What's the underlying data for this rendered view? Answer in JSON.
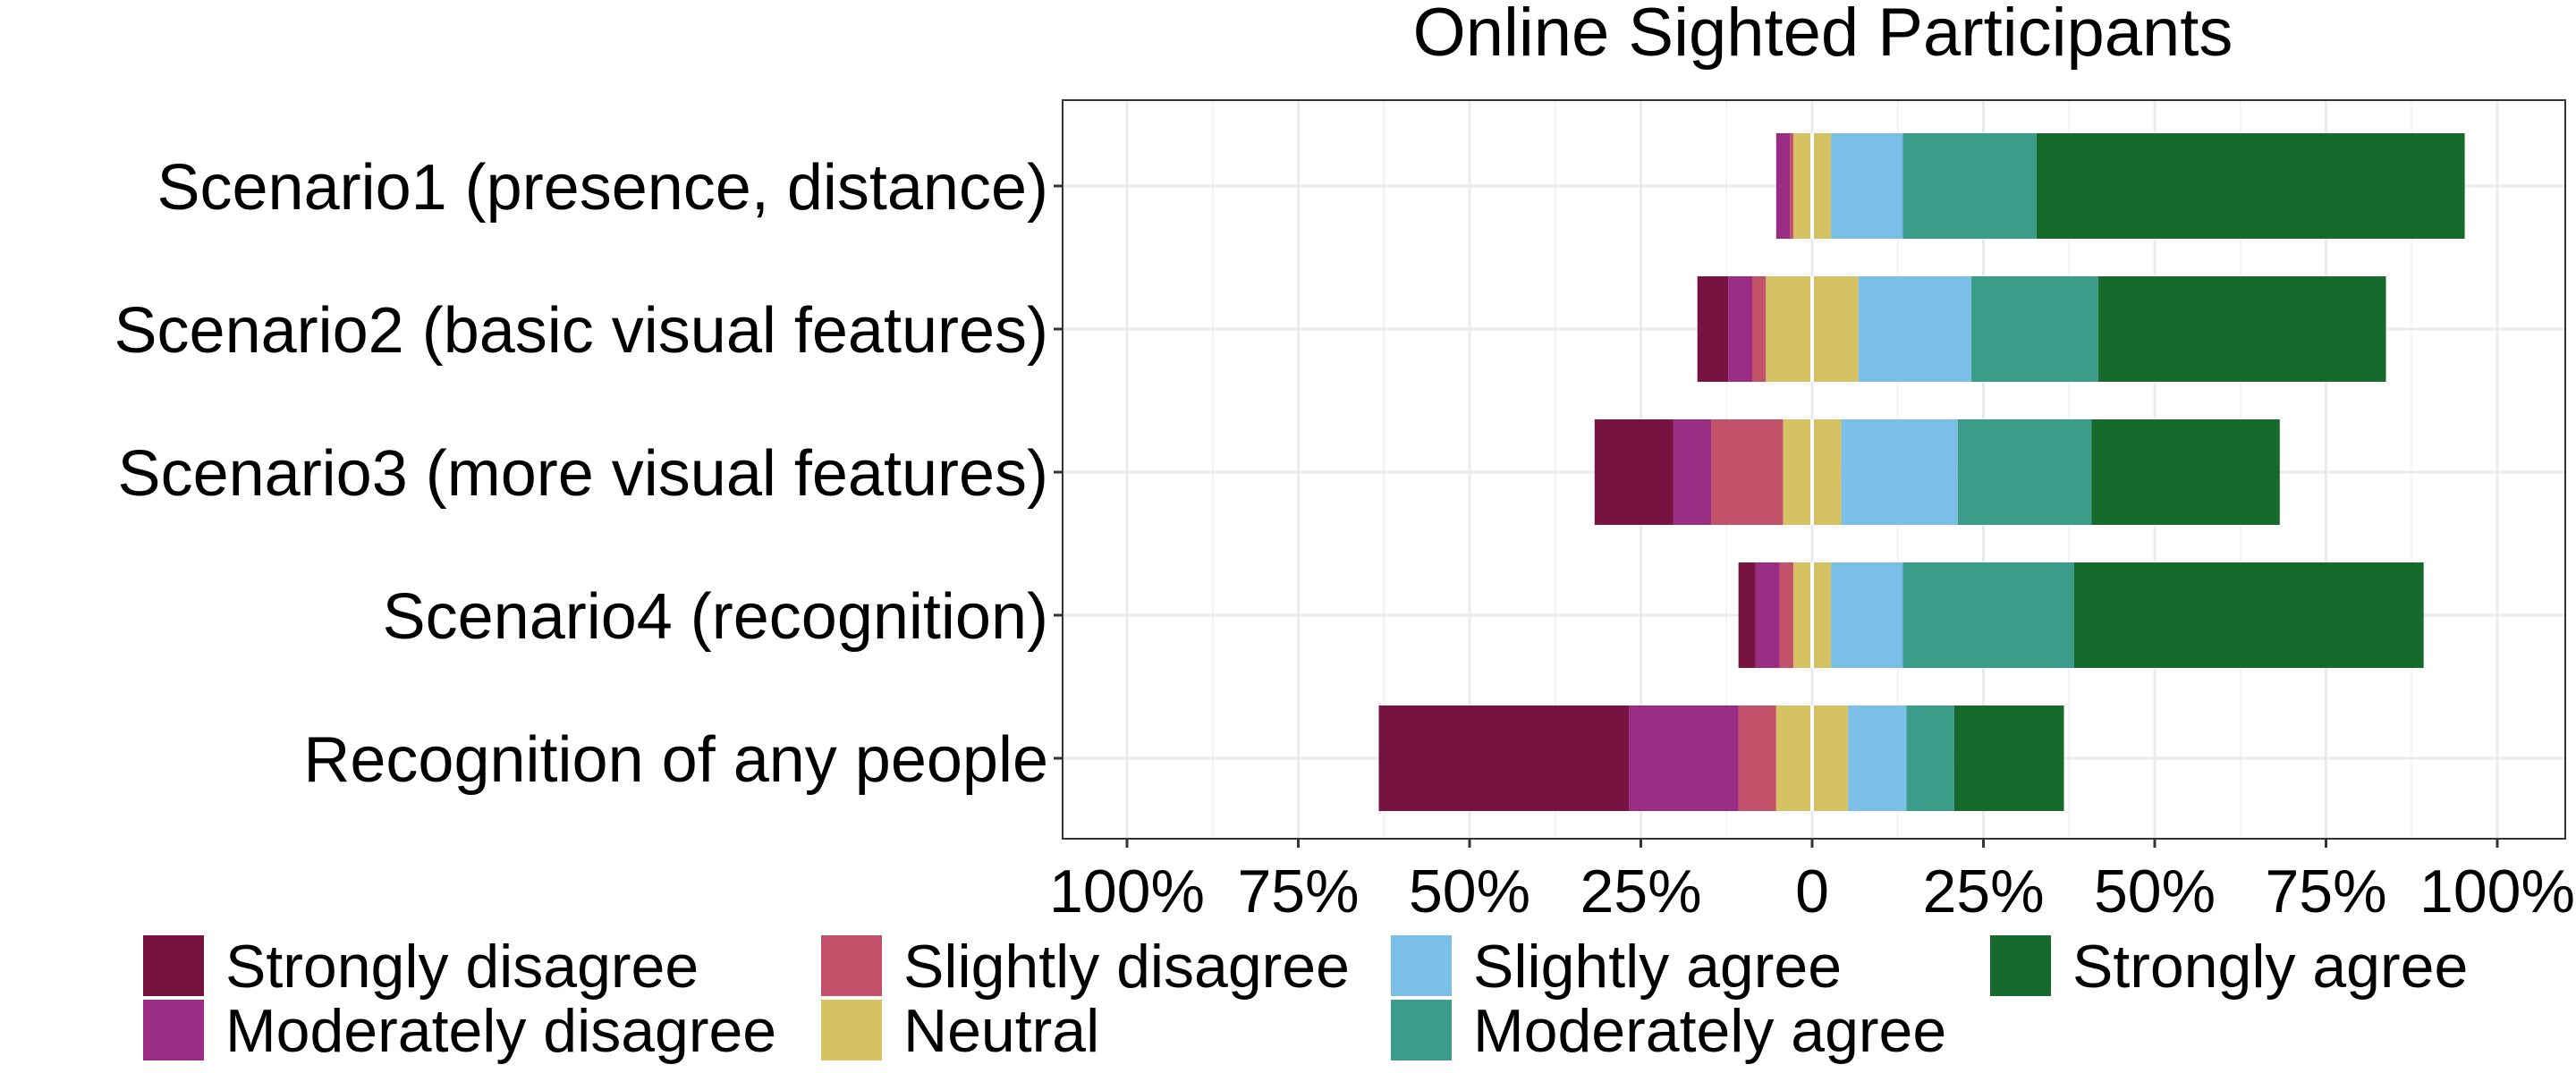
{
  "chart_data": {
    "type": "bar",
    "orientation": "horizontal",
    "stacked": "diverging",
    "title": "Online Sighted Participants",
    "xlabel": "",
    "ylabel": "",
    "xlim": [
      -100,
      100
    ],
    "x_ticks": [
      -100,
      -75,
      -50,
      -25,
      0,
      25,
      50,
      75,
      100
    ],
    "x_tick_labels": [
      "100%",
      "75%",
      "50%",
      "25%",
      "0",
      "25%",
      "50%",
      "75%",
      "100%"
    ],
    "grid": true,
    "legend_position": "bottom",
    "categories": [
      "Scenario1 (presence, distance)",
      "Scenario2 (basic visual features)",
      "Scenario3 (more visual features)",
      "Scenario4 (recognition)",
      "Recognition of any people"
    ],
    "series": [
      {
        "name": "Strongly disagree",
        "color": "#761341",
        "values": [
          0,
          4.5,
          11.5,
          2.5,
          36.5
        ]
      },
      {
        "name": "Moderately disagree",
        "color": "#9b2c84",
        "values": [
          2.0,
          3.5,
          5.5,
          3.5,
          16.0
        ]
      },
      {
        "name": "Slightly disagree",
        "color": "#c2526a",
        "values": [
          0.5,
          2.0,
          10.5,
          2.0,
          5.5
        ]
      },
      {
        "name": "Neutral",
        "color": "#d6c263",
        "values": [
          5.5,
          13.5,
          8.5,
          5.5,
          10.5
        ]
      },
      {
        "name": "Slightly agree",
        "color": "#7bbfe8",
        "values": [
          10.5,
          16.5,
          17.0,
          10.5,
          8.5
        ]
      },
      {
        "name": "Moderately agree",
        "color": "#3b9d89",
        "values": [
          19.5,
          18.5,
          19.5,
          25.0,
          7.0
        ]
      },
      {
        "name": "Strongly agree",
        "color": "#166a2b",
        "values": [
          62.5,
          42.0,
          27.5,
          51.0,
          16.0
        ]
      }
    ]
  }
}
